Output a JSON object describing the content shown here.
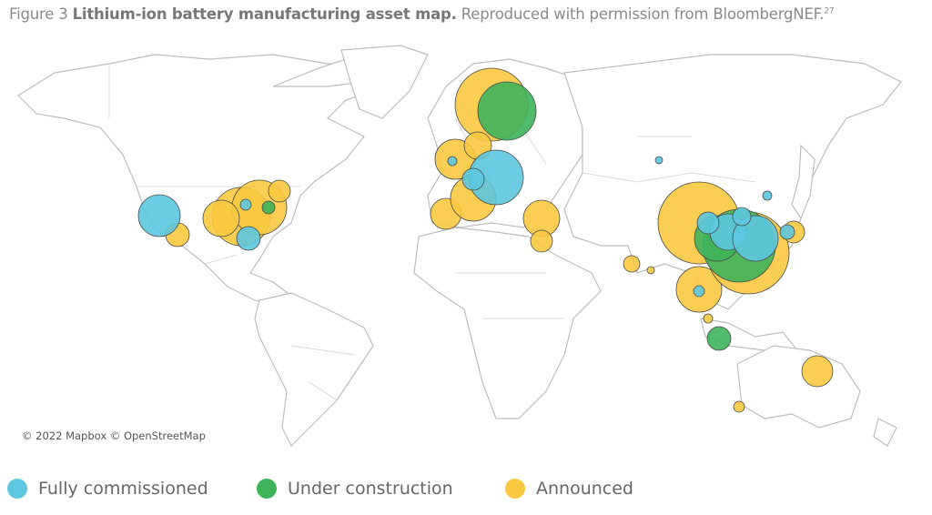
{
  "caption": {
    "figure": "Figure 3",
    "title": "Lithium-ion battery manufacturing asset map.",
    "source": "Reproduced with permission from BloombergNEF.",
    "footnote": "27"
  },
  "map": {
    "attribution": "© 2022 Mapbox © OpenStreetMap"
  },
  "legend": {
    "items": [
      "Fully commissioned",
      "Under construction",
      "Announced"
    ]
  }
}
